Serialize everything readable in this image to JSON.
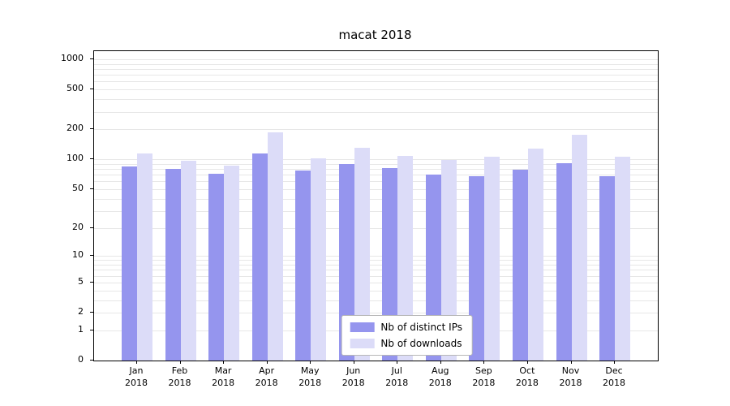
{
  "chart_data": {
    "type": "bar",
    "title": "macat 2018",
    "scale": "symlog",
    "grid": "horizontal-minor",
    "legend_position": "lower center",
    "categories": [
      "Jan",
      "Feb",
      "Mar",
      "Apr",
      "May",
      "Jun",
      "Jul",
      "Aug",
      "Sep",
      "Oct",
      "Nov",
      "Dec"
    ],
    "x_year_label": "2018",
    "series": [
      {
        "name": "Nb of distinct IPs",
        "color": "#9595ee",
        "values": [
          85,
          80,
          72,
          115,
          77,
          90,
          82,
          70,
          67,
          79,
          92,
          67
        ]
      },
      {
        "name": "Nb of downloads",
        "color": "#dcdcf8",
        "values": [
          115,
          97,
          87,
          185,
          103,
          130,
          108,
          99,
          106,
          128,
          175,
          107
        ]
      }
    ],
    "y_ticks": [
      0,
      1,
      2,
      5,
      10,
      20,
      50,
      100,
      200,
      500,
      1000
    ],
    "ylim": [
      0,
      1200
    ]
  }
}
